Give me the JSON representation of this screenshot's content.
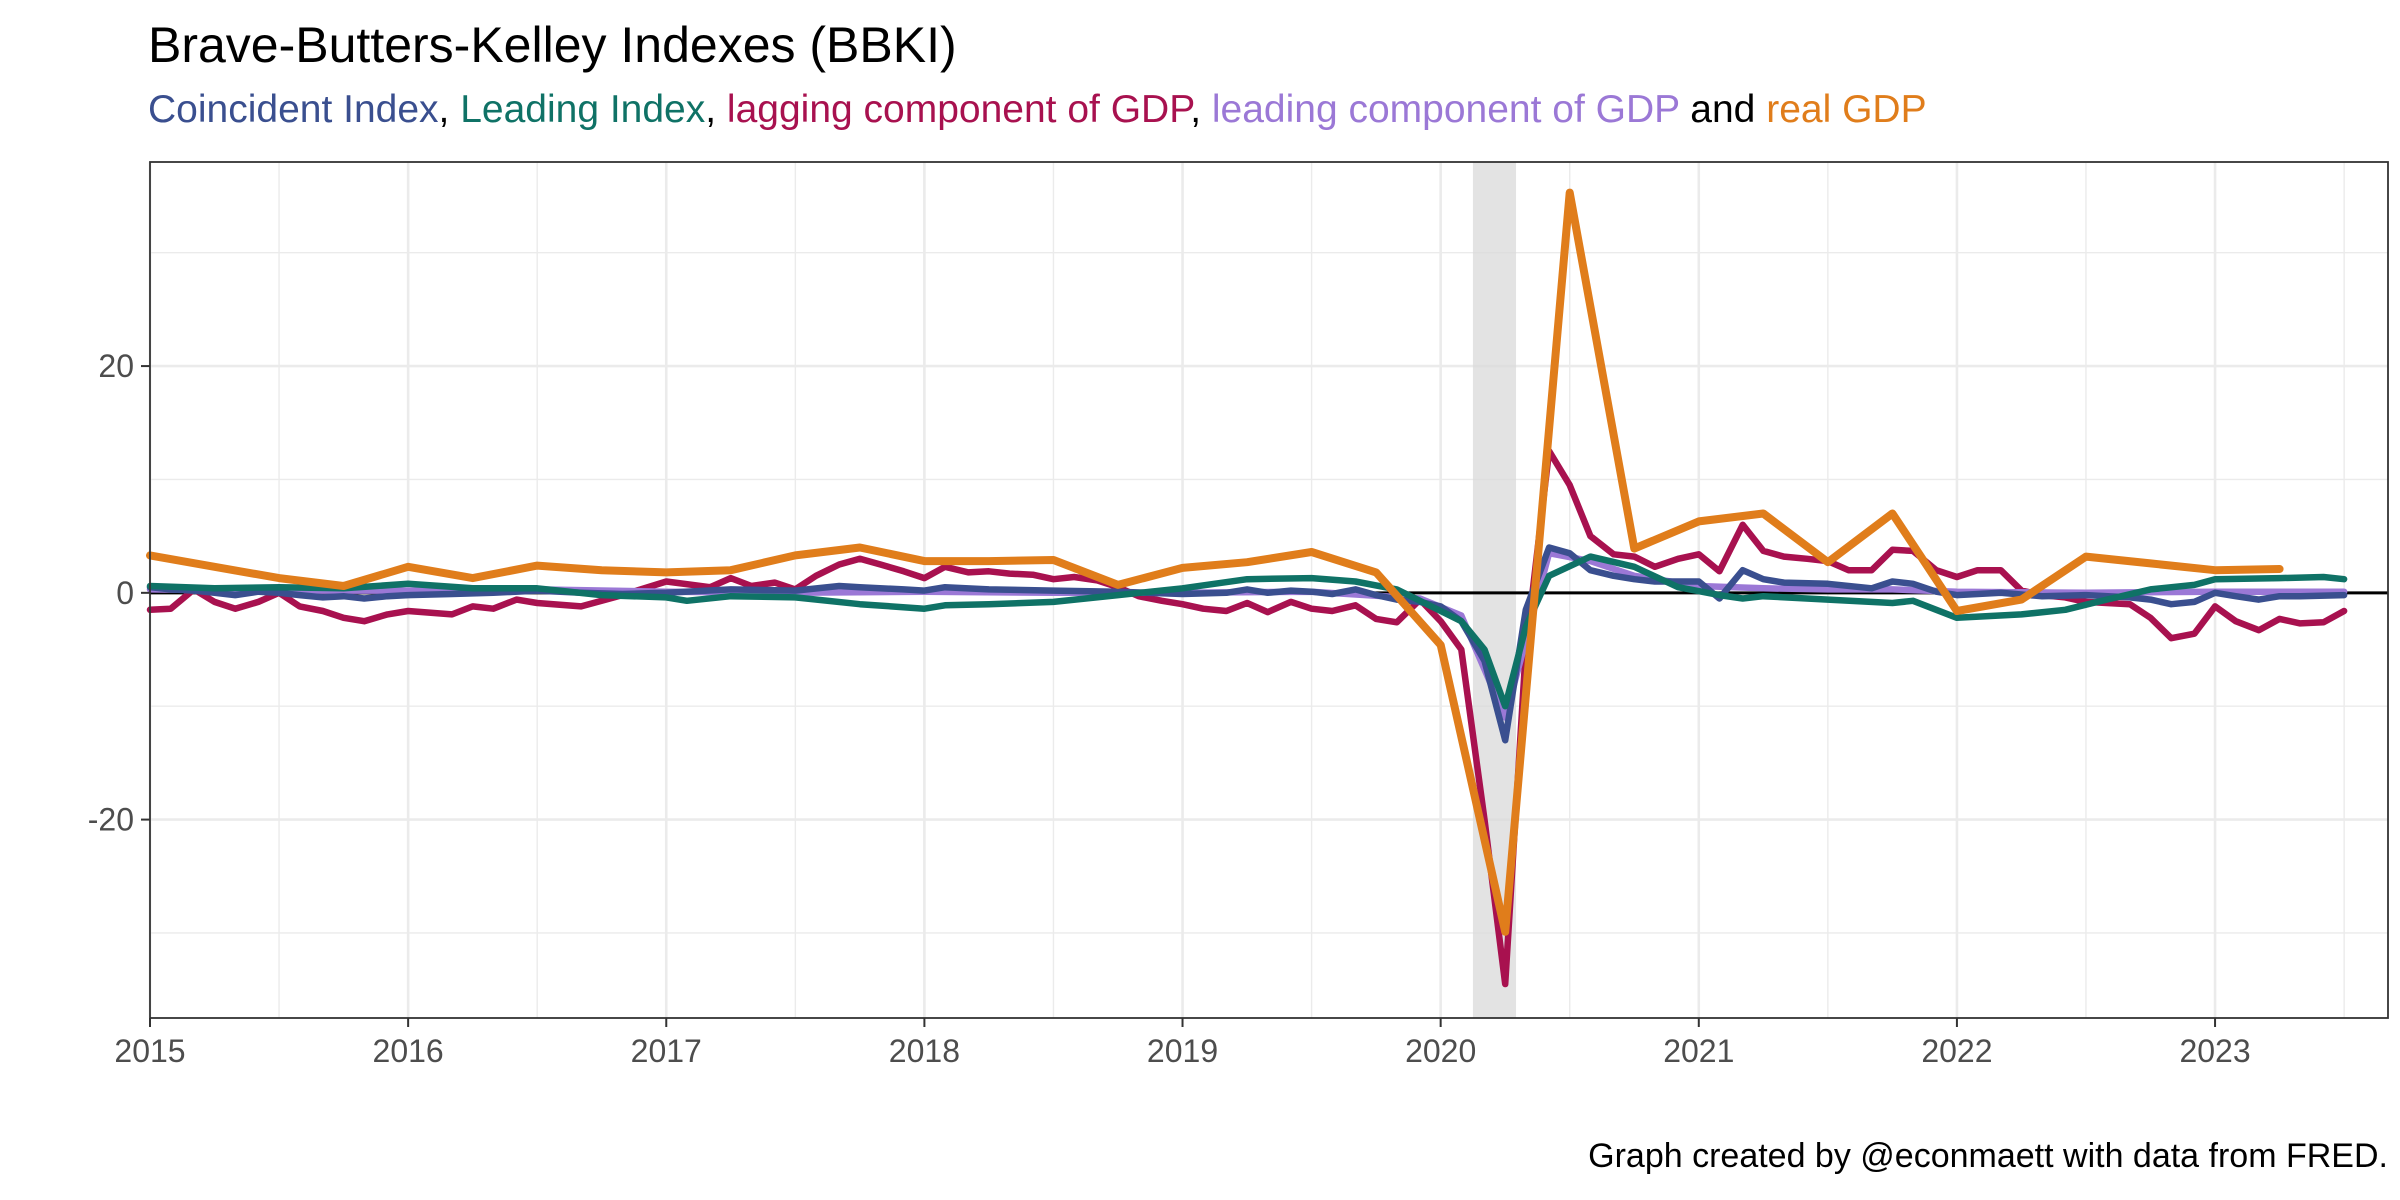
{
  "title": "Brave-Butters-Kelley Indexes (BBKI)",
  "subtitle": {
    "parts": [
      {
        "text": "Coincident Index",
        "color": "#3a4f8f"
      },
      {
        "text": ", ",
        "color": "#000000"
      },
      {
        "text": "Leading Index",
        "color": "#0f7266"
      },
      {
        "text": ", ",
        "color": "#000000"
      },
      {
        "text": "lagging component of GDP",
        "color": "#a8114f"
      },
      {
        "text": ", ",
        "color": "#000000"
      },
      {
        "text": "leading component of GDP",
        "color": "#9b78d6"
      },
      {
        "text": " and ",
        "color": "#000000"
      },
      {
        "text": "real GDP",
        "color": "#e07d1b"
      }
    ]
  },
  "caption": "Graph created by @econmaett with data from FRED.",
  "chart_data": {
    "type": "line",
    "xlim": [
      2015,
      2023.67
    ],
    "ylim": [
      -37.5,
      38
    ],
    "x_ticks": [
      2015,
      2016,
      2017,
      2018,
      2019,
      2020,
      2021,
      2022,
      2023
    ],
    "x_tick_labels": [
      "2015",
      "2016",
      "2017",
      "2018",
      "2019",
      "2020",
      "2021",
      "2022",
      "2023"
    ],
    "y_ticks": [
      -20,
      0,
      20
    ],
    "y_tick_labels": [
      "-20",
      "0",
      "20"
    ],
    "grid": true,
    "zero_line": true,
    "recession_shading": [
      2020.125,
      2020.292
    ],
    "legend": "none (series named in subtitle)",
    "series": [
      {
        "name": "lagging component of GDP",
        "color": "#a8114f",
        "x": [
          2015.0,
          2015.08,
          2015.17,
          2015.25,
          2015.33,
          2015.42,
          2015.5,
          2015.58,
          2015.67,
          2015.75,
          2015.83,
          2015.92,
          2016.0,
          2016.17,
          2016.25,
          2016.33,
          2016.42,
          2016.5,
          2016.67,
          2016.83,
          2017.0,
          2017.17,
          2017.25,
          2017.33,
          2017.42,
          2017.5,
          2017.58,
          2017.67,
          2017.75,
          2017.83,
          2017.92,
          2018.0,
          2018.08,
          2018.17,
          2018.25,
          2018.33,
          2018.42,
          2018.5,
          2018.58,
          2018.67,
          2018.75,
          2018.83,
          2018.92,
          2019.0,
          2019.08,
          2019.17,
          2019.25,
          2019.33,
          2019.42,
          2019.5,
          2019.58,
          2019.67,
          2019.75,
          2019.83,
          2019.92,
          2020.0,
          2020.08,
          2020.17,
          2020.25,
          2020.33,
          2020.42,
          2020.5,
          2020.58,
          2020.67,
          2020.75,
          2020.83,
          2020.92,
          2021.0,
          2021.08,
          2021.17,
          2021.25,
          2021.33,
          2021.42,
          2021.5,
          2021.58,
          2021.67,
          2021.75,
          2021.83,
          2021.92,
          2022.0,
          2022.08,
          2022.17,
          2022.25,
          2022.33,
          2022.42,
          2022.5,
          2022.58,
          2022.67,
          2022.75,
          2022.83,
          2022.92,
          2023.0,
          2023.08,
          2023.17,
          2023.25,
          2023.33,
          2023.42,
          2023.5
        ],
        "y": [
          -1.5,
          -1.4,
          0.3,
          -0.8,
          -1.4,
          -0.8,
          0.0,
          -1.2,
          -1.6,
          -2.2,
          -2.5,
          -1.9,
          -1.6,
          -1.9,
          -1.2,
          -1.4,
          -0.6,
          -0.9,
          -1.2,
          -0.2,
          1.0,
          0.5,
          1.3,
          0.6,
          0.9,
          0.3,
          1.5,
          2.5,
          3.0,
          2.5,
          1.9,
          1.3,
          2.3,
          1.8,
          1.9,
          1.7,
          1.6,
          1.2,
          1.4,
          1.1,
          0.5,
          -0.3,
          -0.7,
          -1.0,
          -1.4,
          -1.6,
          -0.9,
          -1.7,
          -0.8,
          -1.4,
          -1.6,
          -1.1,
          -2.3,
          -2.6,
          -0.6,
          -2.5,
          -5.0,
          -20.0,
          -34.5,
          -5.0,
          12.5,
          9.5,
          5.0,
          3.4,
          3.2,
          2.3,
          3.0,
          3.4,
          1.9,
          6.0,
          3.7,
          3.2,
          3.0,
          2.8,
          2.0,
          2.0,
          3.8,
          3.7,
          2.0,
          1.4,
          2.0,
          2.0,
          0.2,
          -0.2,
          -0.4,
          -0.8,
          -0.9,
          -1.0,
          -2.2,
          -4.0,
          -3.6,
          -1.2,
          -2.5,
          -3.3,
          -2.3,
          -2.7,
          -2.6,
          -1.6
        ]
      },
      {
        "name": "leading component of GDP",
        "color": "#9b78d6",
        "x": [
          2015.0,
          2015.5,
          2016.0,
          2016.5,
          2017.0,
          2017.5,
          2018.0,
          2018.5,
          2019.0,
          2019.5,
          2019.92,
          2020.08,
          2020.25,
          2020.42,
          2020.58,
          2020.75,
          2021.0,
          2021.25,
          2021.5,
          2021.75,
          2022.0,
          2022.5,
          2023.0,
          2023.5
        ],
        "y": [
          0.3,
          0.2,
          0.2,
          0.3,
          0.1,
          0.0,
          0.1,
          0.0,
          0.0,
          0.1,
          -0.5,
          -2.0,
          -11.0,
          3.5,
          2.8,
          1.5,
          0.6,
          0.4,
          0.3,
          0.3,
          0.1,
          0.0,
          0.1,
          0.1
        ]
      },
      {
        "name": "Coincident Index",
        "color": "#3a4f8f",
        "x": [
          2015.0,
          2015.08,
          2015.17,
          2015.25,
          2015.33,
          2015.42,
          2015.5,
          2015.58,
          2015.67,
          2015.75,
          2015.83,
          2015.92,
          2016.0,
          2016.17,
          2016.33,
          2016.5,
          2016.67,
          2016.83,
          2017.0,
          2017.25,
          2017.5,
          2017.67,
          2017.75,
          2017.92,
          2018.0,
          2018.08,
          2018.25,
          2018.5,
          2018.75,
          2019.0,
          2019.17,
          2019.25,
          2019.33,
          2019.42,
          2019.5,
          2019.58,
          2019.67,
          2019.75,
          2019.83,
          2019.92,
          2020.0,
          2020.08,
          2020.17,
          2020.25,
          2020.33,
          2020.42,
          2020.5,
          2020.58,
          2020.67,
          2020.75,
          2020.83,
          2020.92,
          2021.0,
          2021.08,
          2021.17,
          2021.25,
          2021.33,
          2021.5,
          2021.67,
          2021.75,
          2021.83,
          2021.92,
          2022.0,
          2022.17,
          2022.33,
          2022.5,
          2022.67,
          2022.75,
          2022.83,
          2022.92,
          2023.0,
          2023.08,
          2023.17,
          2023.25,
          2023.33,
          2023.5
        ],
        "y": [
          0.5,
          0.3,
          0.2,
          0.0,
          -0.2,
          0.1,
          0.0,
          -0.2,
          -0.4,
          -0.3,
          -0.5,
          -0.3,
          -0.2,
          -0.1,
          0.0,
          0.2,
          0.0,
          -0.1,
          0.0,
          0.3,
          0.2,
          0.6,
          0.5,
          0.3,
          0.2,
          0.5,
          0.3,
          0.2,
          0.1,
          -0.1,
          0.0,
          0.3,
          0.0,
          0.2,
          0.1,
          -0.1,
          0.3,
          -0.2,
          -0.6,
          -0.8,
          -1.2,
          -2.5,
          -6.0,
          -13.0,
          -1.5,
          4.0,
          3.5,
          2.0,
          1.5,
          1.2,
          1.0,
          1.0,
          1.0,
          -0.5,
          2.0,
          1.2,
          0.9,
          0.8,
          0.4,
          1.0,
          0.8,
          0.1,
          -0.2,
          0.0,
          -0.3,
          -0.2,
          -0.4,
          -0.6,
          -1.0,
          -0.8,
          0.0,
          -0.3,
          -0.6,
          -0.3,
          -0.3,
          -0.2
        ]
      },
      {
        "name": "Leading Index",
        "color": "#0f7266",
        "x": [
          2015.0,
          2015.25,
          2015.5,
          2015.75,
          2016.0,
          2016.25,
          2016.5,
          2016.75,
          2017.0,
          2017.08,
          2017.25,
          2017.5,
          2017.75,
          2018.0,
          2018.08,
          2018.25,
          2018.5,
          2018.75,
          2019.0,
          2019.25,
          2019.5,
          2019.67,
          2019.83,
          2020.0,
          2020.08,
          2020.17,
          2020.25,
          2020.33,
          2020.42,
          2020.58,
          2020.75,
          2020.92,
          2021.08,
          2021.17,
          2021.25,
          2021.5,
          2021.75,
          2021.83,
          2022.0,
          2022.25,
          2022.42,
          2022.58,
          2022.75,
          2022.92,
          2023.0,
          2023.25,
          2023.42,
          2023.5
        ],
        "y": [
          0.6,
          0.4,
          0.5,
          0.4,
          0.8,
          0.4,
          0.4,
          -0.2,
          -0.4,
          -0.7,
          -0.3,
          -0.4,
          -1.0,
          -1.4,
          -1.1,
          -1.0,
          -0.8,
          -0.2,
          0.4,
          1.2,
          1.3,
          1.0,
          0.3,
          -1.6,
          -2.5,
          -5.0,
          -10.0,
          -3.0,
          1.5,
          3.2,
          2.3,
          0.5,
          -0.2,
          -0.5,
          -0.3,
          -0.6,
          -0.9,
          -0.7,
          -2.2,
          -1.9,
          -1.5,
          -0.6,
          0.3,
          0.7,
          1.2,
          1.3,
          1.4,
          1.2
        ]
      },
      {
        "name": "real GDP",
        "color": "#e07d1b",
        "x": [
          2015.0,
          2015.25,
          2015.5,
          2015.75,
          2016.0,
          2016.25,
          2016.5,
          2016.75,
          2017.0,
          2017.25,
          2017.5,
          2017.75,
          2018.0,
          2018.25,
          2018.5,
          2018.75,
          2019.0,
          2019.25,
          2019.5,
          2019.75,
          2020.0,
          2020.25,
          2020.5,
          2020.75,
          2021.0,
          2021.25,
          2021.5,
          2021.75,
          2022.0,
          2022.25,
          2022.5,
          2022.75,
          2023.0,
          2023.25
        ],
        "y": [
          3.3,
          2.3,
          1.3,
          0.6,
          2.3,
          1.3,
          2.4,
          2.0,
          1.8,
          2.0,
          3.3,
          4.0,
          2.8,
          2.8,
          2.9,
          0.7,
          2.2,
          2.7,
          3.6,
          1.8,
          -4.6,
          -29.9,
          35.3,
          3.9,
          6.3,
          7.0,
          2.7,
          7.0,
          -1.6,
          -0.6,
          3.2,
          2.6,
          2.0,
          2.1
        ]
      }
    ]
  }
}
